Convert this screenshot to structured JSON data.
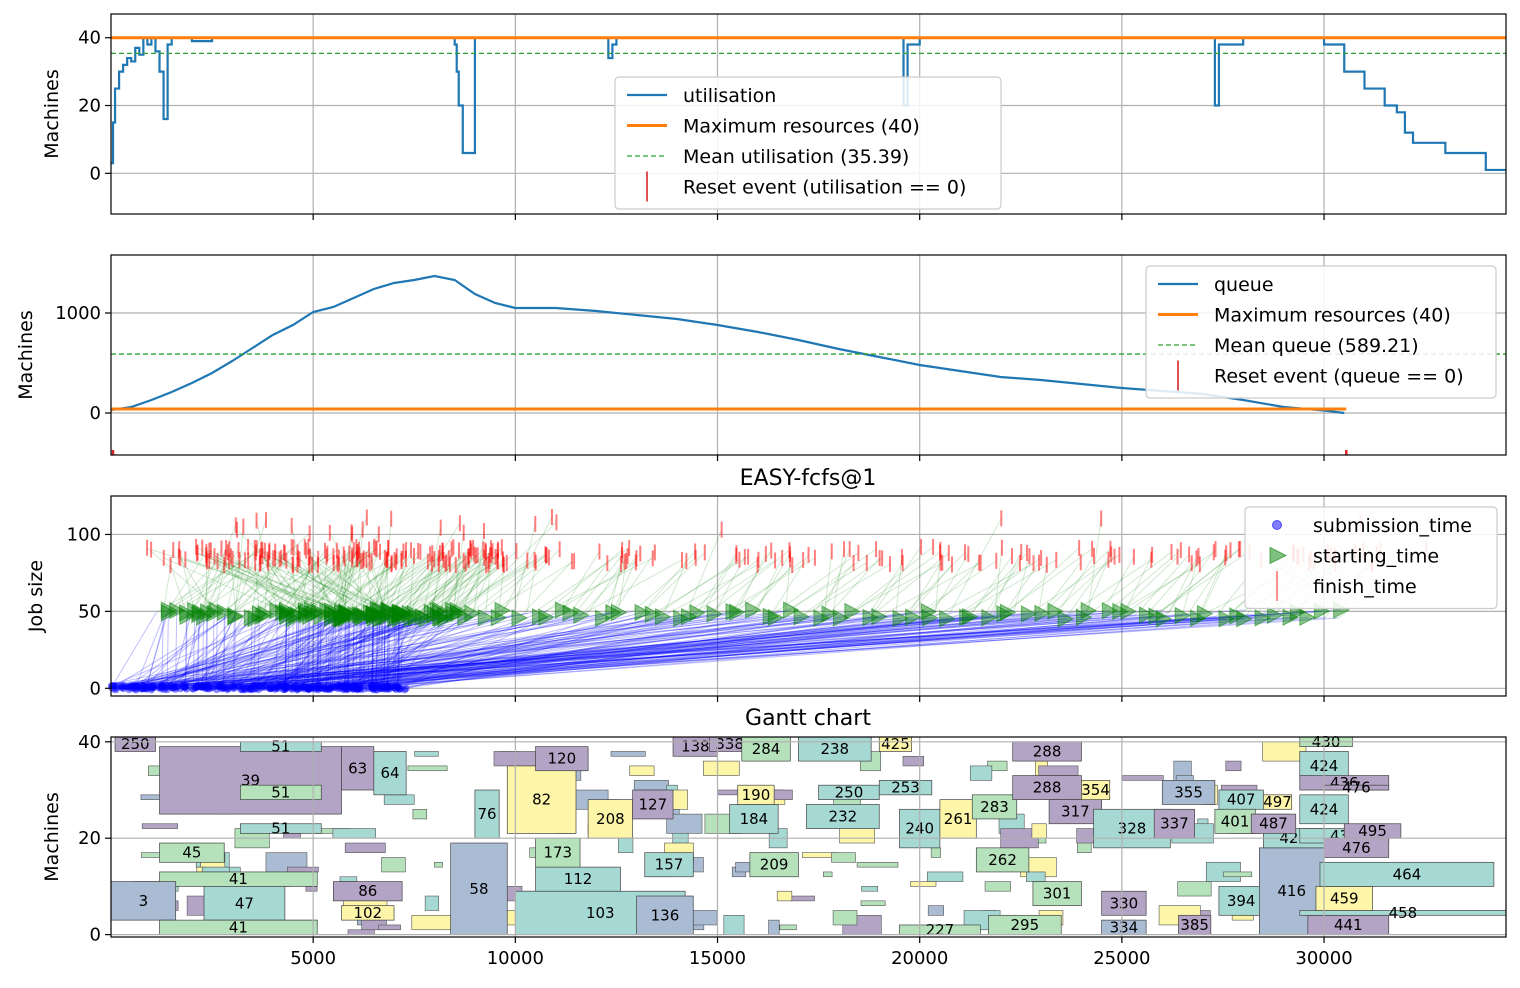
{
  "chart_data": [
    {
      "type": "line",
      "ylabel": "Machines",
      "xlim": [
        0,
        34500
      ],
      "ylim": [
        -12,
        47
      ],
      "yticks": [
        0,
        20,
        40
      ],
      "grid": true,
      "legend_position": "center",
      "legend": [
        {
          "label": "utilisation",
          "kind": "line",
          "color": "#1f77b4"
        },
        {
          "label": "Maximum resources (40)",
          "kind": "line",
          "color": "#ff7f0e"
        },
        {
          "label": "Mean utilisation (35.39)",
          "kind": "dashed",
          "color": "#2ca02c"
        },
        {
          "label": "Reset event (utilisation == 0)",
          "kind": "tick",
          "color": "#d62728"
        }
      ],
      "maximum": 40,
      "mean": 35.39,
      "series": [
        {
          "name": "utilisation",
          "x": [
            0,
            50,
            100,
            200,
            300,
            400,
            500,
            600,
            700,
            800,
            900,
            1000,
            1100,
            1200,
            1300,
            1400,
            1500,
            1800,
            2000,
            2500,
            3000,
            4000,
            5000,
            6000,
            7000,
            8000,
            8300,
            8500,
            8550,
            8600,
            8700,
            9000,
            10000,
            12000,
            12300,
            12400,
            12500,
            13000,
            15000,
            16000,
            17000,
            18000,
            19500,
            19600,
            19700,
            20000,
            22000,
            24000,
            25000,
            27000,
            27300,
            27400,
            28000,
            29000,
            30000,
            30500,
            31000,
            31500,
            31800,
            32000,
            32200,
            33000,
            33500,
            33900,
            34000,
            34500
          ],
          "y": [
            3,
            15,
            25,
            30,
            32,
            34,
            33,
            37,
            35,
            40,
            38,
            40,
            36,
            30,
            16,
            38,
            40,
            40,
            39,
            40,
            40,
            40,
            40,
            40,
            40,
            40,
            40,
            38,
            30,
            20,
            6,
            40,
            40,
            40,
            34,
            38,
            40,
            40,
            40,
            40,
            40,
            40,
            40,
            20,
            38,
            40,
            40,
            40,
            40,
            40,
            20,
            38,
            40,
            40,
            38,
            30,
            25,
            20,
            18,
            12,
            9,
            6,
            6,
            6,
            1,
            1
          ]
        },
        {
          "name": "Maximum resources (40)",
          "x": [
            0,
            34500
          ],
          "y": [
            40,
            40
          ]
        },
        {
          "name": "Mean utilisation (35.39)",
          "x": [
            0,
            34500
          ],
          "y": [
            35.39,
            35.39
          ]
        }
      ]
    },
    {
      "type": "line",
      "ylabel": "Machines",
      "xlim": [
        0,
        34500
      ],
      "ylim": [
        -420,
        1580
      ],
      "yticks": [
        0,
        1000
      ],
      "grid": true,
      "legend_position": "upper right",
      "legend": [
        {
          "label": "queue",
          "kind": "line",
          "color": "#1f77b4"
        },
        {
          "label": "Maximum resources (40)",
          "kind": "line",
          "color": "#ff7f0e"
        },
        {
          "label": "Mean queue (589.21)",
          "kind": "dashed",
          "color": "#2ca02c"
        },
        {
          "label": "Reset event (queue == 0)",
          "kind": "tick",
          "color": "#d62728"
        }
      ],
      "maximum": 40,
      "mean": 589.21,
      "reset_events_x": [
        0,
        30550
      ],
      "series": [
        {
          "name": "queue",
          "x": [
            0,
            500,
            1000,
            1500,
            2000,
            2500,
            3000,
            3500,
            4000,
            4500,
            5000,
            5500,
            6000,
            6500,
            7000,
            7500,
            8000,
            8500,
            9000,
            9500,
            10000,
            11000,
            12000,
            13000,
            14000,
            15000,
            16000,
            17000,
            18000,
            19000,
            20000,
            21000,
            22000,
            23000,
            24000,
            25000,
            26000,
            27000,
            28000,
            29000,
            30000,
            30500
          ],
          "y": [
            30,
            60,
            130,
            210,
            300,
            400,
            520,
            650,
            780,
            880,
            1010,
            1060,
            1150,
            1240,
            1300,
            1330,
            1370,
            1330,
            1190,
            1100,
            1050,
            1050,
            1020,
            980,
            940,
            880,
            810,
            730,
            640,
            560,
            480,
            420,
            360,
            330,
            290,
            250,
            220,
            190,
            130,
            60,
            25,
            0
          ]
        },
        {
          "name": "Maximum resources (40)",
          "x": [
            0,
            30550
          ],
          "y": [
            40,
            40
          ]
        },
        {
          "name": "Mean queue (589.21)",
          "x": [
            0,
            34500
          ],
          "y": [
            589.21,
            589.21
          ]
        }
      ]
    },
    {
      "type": "scatter",
      "title": "EASY-fcfs@1",
      "ylabel": "Job size",
      "xlim": [
        0,
        34500
      ],
      "ylim": [
        -5,
        125
      ],
      "yticks": [
        0,
        50,
        100
      ],
      "grid": true,
      "legend_position": "upper right",
      "legend": [
        {
          "label": "submission_time",
          "kind": "dot",
          "color": "#0000ff"
        },
        {
          "label": "starting_time",
          "kind": "triangle",
          "color": "#008000"
        },
        {
          "label": "finish_time",
          "kind": "tick",
          "color": "#ff0000"
        }
      ]
    },
    {
      "type": "gantt",
      "title": "Gantt chart",
      "ylabel": "Machines",
      "xlim": [
        0,
        34500
      ],
      "ylim": [
        -0.5,
        41
      ],
      "xticks": [
        5000,
        10000,
        15000,
        20000,
        25000,
        30000
      ],
      "yticks": [
        0,
        20,
        40
      ],
      "grid": true,
      "jobs": [
        {
          "id": "250",
          "start": 100,
          "end": 1100,
          "y0": 38,
          "h": 3,
          "c": 3
        },
        {
          "id": "39",
          "start": 1200,
          "end": 5700,
          "y0": 25,
          "h": 14,
          "c": 3
        },
        {
          "id": "51",
          "start": 3200,
          "end": 5200,
          "y0": 38,
          "h": 2,
          "c": 0
        },
        {
          "id": "63",
          "start": 5700,
          "end": 6500,
          "y0": 30,
          "h": 9,
          "c": 3
        },
        {
          "id": "64",
          "start": 6500,
          "end": 7300,
          "y0": 29,
          "h": 9,
          "c": 0
        },
        {
          "id": "41",
          "start": 1200,
          "end": 5100,
          "y0": 10,
          "h": 3,
          "c": 1
        },
        {
          "id": "47",
          "start": 2300,
          "end": 4300,
          "y0": 3,
          "h": 7,
          "c": 0
        },
        {
          "id": "3",
          "start": 0,
          "end": 1600,
          "y0": 3,
          "h": 8,
          "c": 4
        },
        {
          "id": "45",
          "start": 1200,
          "end": 2800,
          "y0": 15,
          "h": 4,
          "c": 1
        },
        {
          "id": "51",
          "start": 3200,
          "end": 5200,
          "y0": 21,
          "h": 2,
          "c": 0
        },
        {
          "id": "51",
          "start": 3200,
          "end": 5200,
          "y0": 28,
          "h": 3,
          "c": 1
        },
        {
          "id": "41",
          "start": 1200,
          "end": 5100,
          "y0": 0,
          "h": 3,
          "c": 1
        },
        {
          "id": "86",
          "start": 5500,
          "end": 7200,
          "y0": 7,
          "h": 4,
          "c": 3
        },
        {
          "id": "102",
          "start": 5700,
          "end": 7000,
          "y0": 3,
          "h": 3,
          "c": 2
        },
        {
          "id": "58",
          "start": 8400,
          "end": 9800,
          "y0": 0,
          "h": 19,
          "c": 4
        },
        {
          "id": "76",
          "start": 9000,
          "end": 9600,
          "y0": 20,
          "h": 10,
          "c": 0
        },
        {
          "id": "82",
          "start": 9800,
          "end": 11500,
          "y0": 21,
          "h": 14,
          "c": 2
        },
        {
          "id": "103",
          "start": 10000,
          "end": 14200,
          "y0": 0,
          "h": 9,
          "c": 0
        },
        {
          "id": "120",
          "start": 10500,
          "end": 11800,
          "y0": 34,
          "h": 5,
          "c": 3
        },
        {
          "id": "112",
          "start": 10500,
          "end": 12600,
          "y0": 9,
          "h": 5,
          "c": 0
        },
        {
          "id": "173",
          "start": 10500,
          "end": 11600,
          "y0": 14,
          "h": 6,
          "c": 1
        },
        {
          "id": "208",
          "start": 11800,
          "end": 12900,
          "y0": 20,
          "h": 8,
          "c": 2
        },
        {
          "id": "127",
          "start": 12900,
          "end": 13900,
          "y0": 24,
          "h": 6,
          "c": 3
        },
        {
          "id": "136",
          "start": 13000,
          "end": 14400,
          "y0": 0,
          "h": 8,
          "c": 4
        },
        {
          "id": "157",
          "start": 13200,
          "end": 14400,
          "y0": 12,
          "h": 5,
          "c": 0
        },
        {
          "id": "138",
          "start": 13900,
          "end": 15000,
          "y0": 37,
          "h": 4,
          "c": 3
        },
        {
          "id": "338",
          "start": 14800,
          "end": 15800,
          "y0": 38,
          "h": 3,
          "c": 3
        },
        {
          "id": "184",
          "start": 15300,
          "end": 16500,
          "y0": 21,
          "h": 6,
          "c": 0
        },
        {
          "id": "190",
          "start": 15500,
          "end": 16400,
          "y0": 27,
          "h": 4,
          "c": 2
        },
        {
          "id": "209",
          "start": 15800,
          "end": 17000,
          "y0": 12,
          "h": 5,
          "c": 1
        },
        {
          "id": "284",
          "start": 15600,
          "end": 16800,
          "y0": 36,
          "h": 5,
          "c": 1
        },
        {
          "id": "238",
          "start": 17000,
          "end": 18800,
          "y0": 36,
          "h": 5,
          "c": 0
        },
        {
          "id": "232",
          "start": 17200,
          "end": 19000,
          "y0": 22,
          "h": 5,
          "c": 0
        },
        {
          "id": "250",
          "start": 17500,
          "end": 19000,
          "y0": 28,
          "h": 3,
          "c": 0
        },
        {
          "id": "253",
          "start": 19000,
          "end": 20300,
          "y0": 29,
          "h": 3,
          "c": 0
        },
        {
          "id": "240",
          "start": 19500,
          "end": 20500,
          "y0": 18,
          "h": 8,
          "c": 0
        },
        {
          "id": "261",
          "start": 20500,
          "end": 21400,
          "y0": 20,
          "h": 8,
          "c": 2
        },
        {
          "id": "262",
          "start": 21400,
          "end": 22700,
          "y0": 13,
          "h": 5,
          "c": 1
        },
        {
          "id": "283",
          "start": 21300,
          "end": 22400,
          "y0": 24,
          "h": 5,
          "c": 1
        },
        {
          "id": "288",
          "start": 22300,
          "end": 24000,
          "y0": 36,
          "h": 4,
          "c": 3
        },
        {
          "id": "288",
          "start": 22300,
          "end": 24000,
          "y0": 28,
          "h": 5,
          "c": 3
        },
        {
          "id": "295",
          "start": 21700,
          "end": 23500,
          "y0": 0,
          "h": 4,
          "c": 1
        },
        {
          "id": "317",
          "start": 23200,
          "end": 24500,
          "y0": 23,
          "h": 5,
          "c": 3
        },
        {
          "id": "301",
          "start": 22800,
          "end": 24000,
          "y0": 6,
          "h": 5,
          "c": 1
        },
        {
          "id": "328",
          "start": 24300,
          "end": 26200,
          "y0": 18,
          "h": 8,
          "c": 0
        },
        {
          "id": "334",
          "start": 24500,
          "end": 25600,
          "y0": 0,
          "h": 3,
          "c": 4
        },
        {
          "id": "337",
          "start": 25800,
          "end": 26800,
          "y0": 20,
          "h": 6,
          "c": 3
        },
        {
          "id": "355",
          "start": 26000,
          "end": 27300,
          "y0": 27,
          "h": 5,
          "c": 4
        },
        {
          "id": "385",
          "start": 26400,
          "end": 27200,
          "y0": 0,
          "h": 4,
          "c": 3
        },
        {
          "id": "394",
          "start": 27400,
          "end": 28500,
          "y0": 4,
          "h": 6,
          "c": 0
        },
        {
          "id": "407",
          "start": 27400,
          "end": 28500,
          "y0": 26,
          "h": 4,
          "c": 0
        },
        {
          "id": "401",
          "start": 27300,
          "end": 28300,
          "y0": 21,
          "h": 5,
          "c": 1
        },
        {
          "id": "416",
          "start": 28400,
          "end": 30000,
          "y0": 0,
          "h": 18,
          "c": 4
        },
        {
          "id": "421",
          "start": 28500,
          "end": 30000,
          "y0": 18,
          "h": 4,
          "c": 0
        },
        {
          "id": "424",
          "start": 29400,
          "end": 30600,
          "y0": 32,
          "h": 6,
          "c": 0
        },
        {
          "id": "424",
          "start": 29400,
          "end": 30600,
          "y0": 23,
          "h": 6,
          "c": 0
        },
        {
          "id": "430",
          "start": 29400,
          "end": 30700,
          "y0": 39,
          "h": 2,
          "c": 1
        },
        {
          "id": "436",
          "start": 29400,
          "end": 31600,
          "y0": 30,
          "h": 3,
          "c": 3
        },
        {
          "id": "436",
          "start": 29400,
          "end": 31600,
          "y0": 19,
          "h": 3,
          "c": 0
        },
        {
          "id": "441",
          "start": 29600,
          "end": 31600,
          "y0": 0,
          "h": 4,
          "c": 3
        },
        {
          "id": "458",
          "start": 29400,
          "end": 34500,
          "y0": 4,
          "h": 1,
          "c": 0
        },
        {
          "id": "459",
          "start": 29800,
          "end": 31200,
          "y0": 5,
          "h": 5,
          "c": 2
        },
        {
          "id": "464",
          "start": 29900,
          "end": 34200,
          "y0": 10,
          "h": 5,
          "c": 0
        },
        {
          "id": "476",
          "start": 30000,
          "end": 31600,
          "y0": 16,
          "h": 4,
          "c": 3
        },
        {
          "id": "476",
          "start": 30000,
          "end": 31600,
          "y0": 30,
          "h": 1,
          "c": 3
        },
        {
          "id": "487",
          "start": 28200,
          "end": 29300,
          "y0": 21,
          "h": 4,
          "c": 3
        },
        {
          "id": "495",
          "start": 30500,
          "end": 31900,
          "y0": 20,
          "h": 3,
          "c": 3
        },
        {
          "id": "497",
          "start": 28500,
          "end": 29200,
          "y0": 26,
          "h": 3,
          "c": 2
        },
        {
          "id": "425",
          "start": 19000,
          "end": 19800,
          "y0": 38,
          "h": 3,
          "c": 2
        },
        {
          "id": "354",
          "start": 24000,
          "end": 24700,
          "y0": 28,
          "h": 4,
          "c": 2
        },
        {
          "id": "330",
          "start": 24500,
          "end": 25600,
          "y0": 4,
          "h": 5,
          "c": 3
        },
        {
          "id": "227",
          "start": 19500,
          "end": 21500,
          "y0": 0,
          "h": 2,
          "c": 1
        }
      ]
    }
  ]
}
